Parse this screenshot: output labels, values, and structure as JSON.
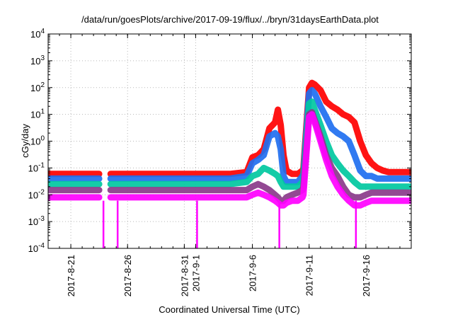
{
  "chart_data": {
    "type": "line",
    "title": "/data/run/goesPlots/archive/2017-09-19/flux/../bryn/31daysEarthData.plot",
    "xlabel": "Coordinated Universal Time (UTC)",
    "ylabel": "cGy/day",
    "yscale": "log",
    "ylim": [
      0.0001,
      10000
    ],
    "xlim": [
      "2017-08-19",
      "2017-09-20"
    ],
    "grid": true,
    "legend": "none",
    "x_ticks": [
      {
        "date": "2017-08-21",
        "label": "2017-8-21"
      },
      {
        "date": "2017-08-26",
        "label": "2017-8-26"
      },
      {
        "date": "2017-08-31",
        "label": "2017-8-31"
      },
      {
        "date": "2017-09-01",
        "label": "2017-9-1"
      },
      {
        "date": "2017-09-06",
        "label": "2017-9-6"
      },
      {
        "date": "2017-09-11",
        "label": "2017-9-11"
      },
      {
        "date": "2017-09-16",
        "label": "2017-9-16"
      }
    ],
    "y_ticks": [
      {
        "value": 0.0001,
        "base": "10",
        "exp": "-4"
      },
      {
        "value": 0.001,
        "base": "10",
        "exp": "-3"
      },
      {
        "value": 0.01,
        "base": "10",
        "exp": "-2"
      },
      {
        "value": 0.1,
        "base": "10",
        "exp": "-1"
      },
      {
        "value": 1,
        "base": "10",
        "exp": "0"
      },
      {
        "value": 10,
        "base": "10",
        "exp": "1"
      },
      {
        "value": 100,
        "base": "10",
        "exp": "2"
      },
      {
        "value": 1000,
        "base": "10",
        "exp": "3"
      },
      {
        "value": 10000,
        "base": "10",
        "exp": "4"
      }
    ],
    "series": [
      {
        "color": "#ff0000",
        "x": [
          "2017-08-19T00:00",
          "2017-08-23T12:00",
          "2017-08-24T00:00",
          "2017-08-24T12:00",
          "2017-09-04T00:00",
          "2017-09-05T12:00",
          "2017-09-06T00:00",
          "2017-09-06T12:00",
          "2017-09-07T00:00",
          "2017-09-07T12:00",
          "2017-09-08T00:00",
          "2017-09-08T06:00",
          "2017-09-08T12:00",
          "2017-09-08T18:00",
          "2017-09-09T00:00",
          "2017-09-09T12:00",
          "2017-09-10T00:00",
          "2017-09-10T10:00",
          "2017-09-10T12:00",
          "2017-09-11T00:00",
          "2017-09-11T06:00",
          "2017-09-11T12:00",
          "2017-09-12T00:00",
          "2017-09-12T12:00",
          "2017-09-13T00:00",
          "2017-09-13T12:00",
          "2017-09-14T00:00",
          "2017-09-14T12:00",
          "2017-09-15T00:00",
          "2017-09-15T12:00",
          "2017-09-16T00:00",
          "2017-09-16T12:00",
          "2017-09-17T00:00",
          "2017-09-17T12:00",
          "2017-09-18T00:00",
          "2017-09-19T00:00",
          "2017-09-20T00:00"
        ],
        "y": [
          0.06,
          0.06,
          null,
          0.06,
          0.06,
          0.07,
          0.25,
          0.3,
          0.5,
          3,
          5,
          15,
          4,
          0.3,
          0.08,
          0.06,
          0.06,
          0.08,
          0.1,
          100,
          150,
          130,
          80,
          30,
          20,
          15,
          10,
          8,
          5,
          1,
          0.3,
          0.15,
          0.1,
          0.08,
          0.07,
          0.07,
          0.07
        ]
      },
      {
        "color": "#1f6ff0",
        "x": [
          "2017-08-19T00:00",
          "2017-08-23T12:00",
          "2017-08-24T00:00",
          "2017-08-24T12:00",
          "2017-09-04T00:00",
          "2017-09-05T12:00",
          "2017-09-06T00:00",
          "2017-09-06T12:00",
          "2017-09-07T00:00",
          "2017-09-07T12:00",
          "2017-09-08T00:00",
          "2017-09-08T06:00",
          "2017-09-08T12:00",
          "2017-09-08T18:00",
          "2017-09-09T00:00",
          "2017-09-09T12:00",
          "2017-09-10T00:00",
          "2017-09-10T10:00",
          "2017-09-10T12:00",
          "2017-09-11T00:00",
          "2017-09-11T06:00",
          "2017-09-11T12:00",
          "2017-09-12T00:00",
          "2017-09-12T12:00",
          "2017-09-13T00:00",
          "2017-09-13T12:00",
          "2017-09-14T00:00",
          "2017-09-14T12:00",
          "2017-09-15T00:00",
          "2017-09-15T12:00",
          "2017-09-16T00:00",
          "2017-09-16T12:00",
          "2017-09-17T00:00",
          "2017-09-17T12:00",
          "2017-09-18T00:00",
          "2017-09-19T00:00",
          "2017-09-20T00:00"
        ],
        "y": [
          0.04,
          0.04,
          null,
          0.04,
          0.04,
          0.05,
          0.15,
          0.2,
          0.3,
          1.5,
          2,
          1.5,
          0.5,
          0.05,
          0.03,
          0.03,
          0.03,
          0.05,
          0.06,
          60,
          80,
          60,
          20,
          8,
          3,
          2,
          1.5,
          1,
          0.3,
          0.08,
          0.05,
          0.05,
          0.04,
          0.04,
          0.04,
          0.04,
          0.04
        ]
      },
      {
        "color": "#00c8a0",
        "x": [
          "2017-08-19T00:00",
          "2017-08-23T12:00",
          "2017-08-24T00:00",
          "2017-08-24T12:00",
          "2017-09-04T00:00",
          "2017-09-05T12:00",
          "2017-09-06T00:00",
          "2017-09-06T12:00",
          "2017-09-07T00:00",
          "2017-09-07T12:00",
          "2017-09-08T00:00",
          "2017-09-08T06:00",
          "2017-09-08T12:00",
          "2017-09-08T18:00",
          "2017-09-09T00:00",
          "2017-09-09T12:00",
          "2017-09-10T00:00",
          "2017-09-10T10:00",
          "2017-09-10T12:00",
          "2017-09-11T00:00",
          "2017-09-11T06:00",
          "2017-09-11T12:00",
          "2017-09-12T00:00",
          "2017-09-12T12:00",
          "2017-09-13T00:00",
          "2017-09-13T12:00",
          "2017-09-14T00:00",
          "2017-09-14T12:00",
          "2017-09-15T00:00",
          "2017-09-15T12:00",
          "2017-09-16T00:00",
          "2017-09-16T12:00",
          "2017-09-17T00:00",
          "2017-09-17T12:00",
          "2017-09-18T00:00",
          "2017-09-19T00:00",
          "2017-09-20T00:00"
        ],
        "y": [
          0.025,
          0.025,
          null,
          0.025,
          0.025,
          0.03,
          0.05,
          0.06,
          0.1,
          0.08,
          0.06,
          0.05,
          0.03,
          0.02,
          0.02,
          0.02,
          0.02,
          0.03,
          0.04,
          25,
          30,
          15,
          4,
          1,
          0.3,
          0.15,
          0.08,
          0.05,
          0.03,
          0.02,
          0.02,
          0.02,
          0.02,
          0.02,
          0.02,
          0.02,
          0.02
        ]
      },
      {
        "color": "#8a3a8a",
        "x": [
          "2017-08-19T00:00",
          "2017-08-23T12:00",
          "2017-08-24T00:00",
          "2017-08-24T12:00",
          "2017-09-04T00:00",
          "2017-09-05T12:00",
          "2017-09-06T00:00",
          "2017-09-06T12:00",
          "2017-09-07T00:00",
          "2017-09-07T12:00",
          "2017-09-08T00:00",
          "2017-09-08T06:00",
          "2017-09-08T12:00",
          "2017-09-08T18:00",
          "2017-09-09T00:00",
          "2017-09-09T12:00",
          "2017-09-10T00:00",
          "2017-09-10T10:00",
          "2017-09-10T12:00",
          "2017-09-11T00:00",
          "2017-09-11T06:00",
          "2017-09-11T12:00",
          "2017-09-12T00:00",
          "2017-09-12T12:00",
          "2017-09-13T00:00",
          "2017-09-13T12:00",
          "2017-09-14T00:00",
          "2017-09-14T12:00",
          "2017-09-15T00:00",
          "2017-09-15T12:00",
          "2017-09-16T00:00",
          "2017-09-16T12:00",
          "2017-09-17T00:00",
          "2017-09-17T12:00",
          "2017-09-18T00:00",
          "2017-09-19T00:00",
          "2017-09-20T00:00"
        ],
        "y": [
          0.015,
          0.015,
          null,
          0.015,
          0.015,
          0.015,
          0.02,
          0.025,
          0.02,
          0.015,
          0.01,
          0.008,
          0.006,
          0.006,
          0.008,
          0.01,
          0.012,
          0.015,
          0.02,
          10,
          12,
          6,
          1.5,
          0.3,
          0.1,
          0.05,
          0.02,
          0.01,
          0.008,
          0.008,
          0.01,
          0.012,
          0.012,
          0.012,
          0.012,
          0.012,
          0.012
        ]
      },
      {
        "color": "#ff00ff",
        "x": [
          "2017-08-19T00:00",
          "2017-08-23T12:00",
          "2017-08-24T00:00",
          "2017-08-24T12:00",
          "2017-09-04T00:00",
          "2017-09-05T12:00",
          "2017-09-06T00:00",
          "2017-09-06T12:00",
          "2017-09-07T00:00",
          "2017-09-07T12:00",
          "2017-09-08T00:00",
          "2017-09-08T06:00",
          "2017-09-08T12:00",
          "2017-09-08T18:00",
          "2017-09-09T00:00",
          "2017-09-09T12:00",
          "2017-09-10T00:00",
          "2017-09-10T10:00",
          "2017-09-10T12:00",
          "2017-09-11T00:00",
          "2017-09-11T06:00",
          "2017-09-11T12:00",
          "2017-09-12T00:00",
          "2017-09-12T12:00",
          "2017-09-13T00:00",
          "2017-09-13T12:00",
          "2017-09-14T00:00",
          "2017-09-14T12:00",
          "2017-09-15T00:00",
          "2017-09-15T12:00",
          "2017-09-16T00:00",
          "2017-09-16T12:00",
          "2017-09-17T00:00",
          "2017-09-17T12:00",
          "2017-09-18T00:00",
          "2017-09-19T00:00",
          "2017-09-20T00:00"
        ],
        "y": [
          0.008,
          0.008,
          null,
          0.008,
          0.008,
          0.008,
          0.01,
          0.012,
          0.01,
          0.008,
          0.006,
          0.005,
          0.004,
          0.004,
          0.005,
          0.006,
          0.006,
          0.008,
          0.01,
          8,
          10,
          5,
          1,
          0.2,
          0.05,
          0.02,
          0.01,
          0.006,
          0.004,
          0.004,
          0.005,
          0.006,
          0.006,
          0.006,
          0.006,
          0.006,
          0.006
        ]
      }
    ],
    "drops_to_floor": [
      {
        "date": "2017-08-23T21:00",
        "color": "#ff00ff"
      },
      {
        "date": "2017-08-25T03:00",
        "color": "#ff00ff"
      },
      {
        "date": "2017-09-01T03:00",
        "color": "#ff00ff"
      },
      {
        "date": "2017-09-08T09:00",
        "color": "#ff00ff"
      },
      {
        "date": "2017-09-15T03:00",
        "color": "#ff00ff"
      }
    ]
  }
}
